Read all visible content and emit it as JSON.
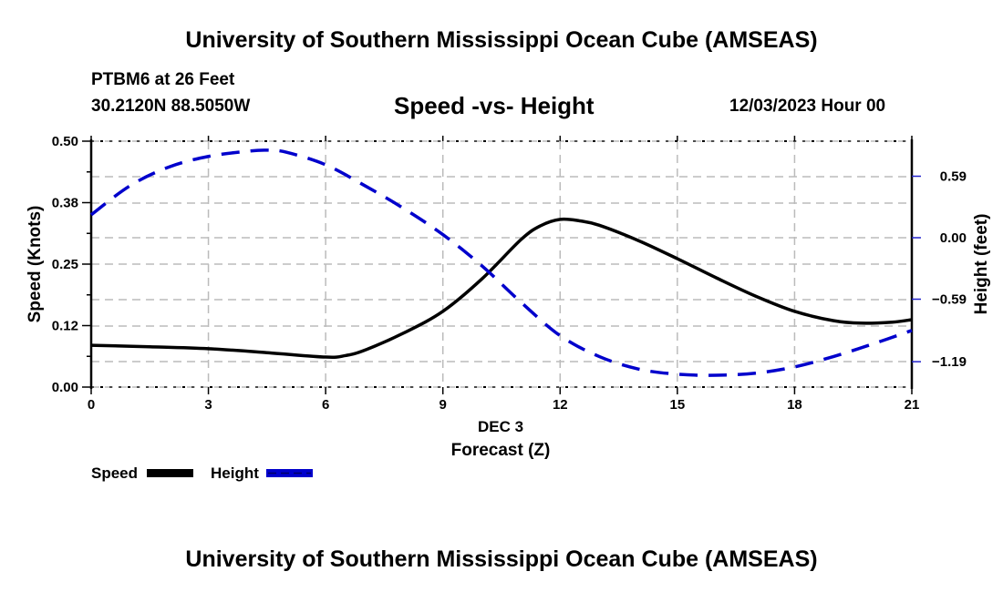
{
  "header": {
    "title": "University of Southern Mississippi Ocean Cube (AMSEAS)",
    "station": "PTBM6 at 26 Feet",
    "coords": "30.2120N  88.5050W",
    "subtitle": "Speed -vs- Height",
    "date": "12/03/2023 Hour 00",
    "footer_title": "University of Southern Mississippi Ocean Cube (AMSEAS)"
  },
  "chart_data": {
    "type": "line",
    "title": "Speed -vs- Height",
    "xlabel": "Forecast (Z)",
    "xsublabel": "DEC 3",
    "ylabel": "Speed (Knots)",
    "y2label": "Height (feet)",
    "xlim": [
      0,
      21
    ],
    "ylim": [
      0,
      0.5
    ],
    "y2lim": [
      -1.5,
      0.9
    ],
    "x_ticks": [
      0,
      3,
      6,
      9,
      12,
      15,
      18,
      21
    ],
    "x_tick_labels": [
      "0",
      "3",
      "6",
      "9",
      "12",
      "15",
      "18",
      "21"
    ],
    "y_ticks": [
      0.0,
      0.125,
      0.25,
      0.375,
      0.5
    ],
    "y_tick_labels": [
      "0.00",
      "0.12",
      "0.25",
      "0.38",
      "0.50"
    ],
    "y2_ticks": [
      0.59,
      0.0,
      -0.59,
      -1.19
    ],
    "y2_tick_labels": [
      "0.59",
      "0.00",
      "−0.59",
      "−1.19"
    ],
    "grid": true,
    "legend": "bottom-left",
    "series": [
      {
        "name": "Speed",
        "axis": "left",
        "color": "#000000",
        "style": "solid",
        "x": [
          0,
          1.5,
          3,
          4.5,
          6,
          6.5,
          7,
          8,
          9,
          10,
          11,
          11.5,
          12,
          12.5,
          13,
          14,
          15,
          16,
          17,
          18,
          19,
          19.7,
          20.5,
          21
        ],
        "values": [
          0.085,
          0.082,
          0.078,
          0.07,
          0.061,
          0.064,
          0.075,
          0.11,
          0.154,
          0.22,
          0.3,
          0.328,
          0.341,
          0.338,
          0.329,
          0.298,
          0.261,
          0.222,
          0.185,
          0.154,
          0.135,
          0.13,
          0.132,
          0.137
        ]
      },
      {
        "name": "Height",
        "axis": "right",
        "color": "#0000cc",
        "style": "dashed",
        "x": [
          0,
          1,
          2,
          3,
          4,
          4.5,
          5,
          6,
          7,
          8,
          9,
          10,
          11,
          12,
          13,
          14,
          15,
          16,
          17,
          18,
          19,
          20,
          21
        ],
        "values": [
          0.22,
          0.5,
          0.68,
          0.78,
          0.83,
          0.84,
          0.82,
          0.7,
          0.5,
          0.28,
          0.03,
          -0.27,
          -0.62,
          -0.94,
          -1.14,
          -1.26,
          -1.31,
          -1.32,
          -1.3,
          -1.24,
          -1.14,
          -1.02,
          -0.89
        ]
      }
    ]
  }
}
